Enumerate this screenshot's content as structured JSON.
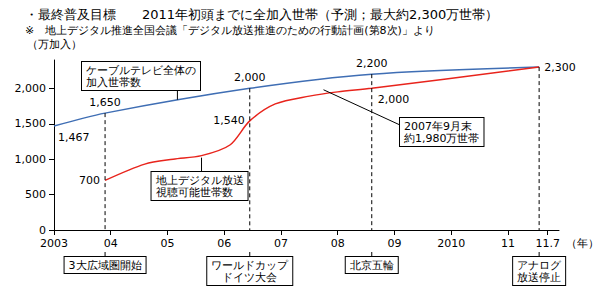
{
  "chart_data": {
    "type": "line",
    "title": "・最終普及目標　　2011年初頭までに全加入世帯（予測；最大約2,300万世帯）",
    "subtitle": "※　地上デジタル推進全国会議「デジタル放送推進のための行動計画(第8次)」より",
    "y_label": "（万加入）",
    "x_label": "（年）",
    "xlim": [
      2003,
      2011.9
    ],
    "xticks": [
      2003,
      {
        "value": 2004,
        "label": "04"
      },
      {
        "value": 2005,
        "label": "05"
      },
      {
        "value": 2006,
        "label": "06"
      },
      {
        "value": 2007,
        "label": "07"
      },
      {
        "value": 2008,
        "label": "08"
      },
      {
        "value": 2009,
        "label": "09"
      },
      2010,
      {
        "value": 2011,
        "label": "11"
      },
      {
        "value": 2011.7,
        "label": "11.7"
      }
    ],
    "ylim": [
      0,
      2400
    ],
    "yticks": [
      0,
      500,
      {
        "value": 1000,
        "label": "1,000"
      },
      {
        "value": 1500,
        "label": "1,500"
      },
      {
        "value": 2000,
        "label": "2,000"
      }
    ],
    "grid": false,
    "data_labels": true,
    "series": [
      {
        "name": "ケーブルテレビ全体の\n加入世帯数",
        "color": "#3f6eb4",
        "x": [
          2003,
          2003.9,
          2006.45,
          2008.6,
          2011.55
        ],
        "values": [
          1467,
          1650,
          2000,
          2200,
          2300
        ],
        "value_labels": [
          "1,467",
          "1,650",
          "2,000",
          "2,200",
          "2,300"
        ]
      },
      {
        "name": "地上デジタル放送\n視聴可能世帯数",
        "color": "#e8241c",
        "x": [
          2003.9,
          2004.6,
          2005.1,
          2005.6,
          2006.1,
          2006.45,
          2006.9,
          2007.5,
          2008.0,
          2008.6,
          2011.55
        ],
        "values": [
          700,
          930,
          1000,
          1050,
          1200,
          1540,
          1780,
          1890,
          1950,
          2000,
          2300
        ],
        "value_labels": [
          "700",
          null,
          null,
          null,
          null,
          "1,540",
          null,
          null,
          null,
          "2,000",
          null
        ]
      }
    ],
    "events": [
      {
        "x": 2003.9,
        "label": "3大広域圏開始"
      },
      {
        "x": 2006.45,
        "label": "ワールドカップ\nドイツ大会"
      },
      {
        "x": 2008.6,
        "label": "北京五輪"
      },
      {
        "x": 2011.55,
        "label": "アナログ\n放送停止"
      }
    ],
    "annotations": [
      {
        "text": "2007年9月末\n約1,980万世帯",
        "x": 2007.75,
        "y": 1980
      }
    ]
  }
}
